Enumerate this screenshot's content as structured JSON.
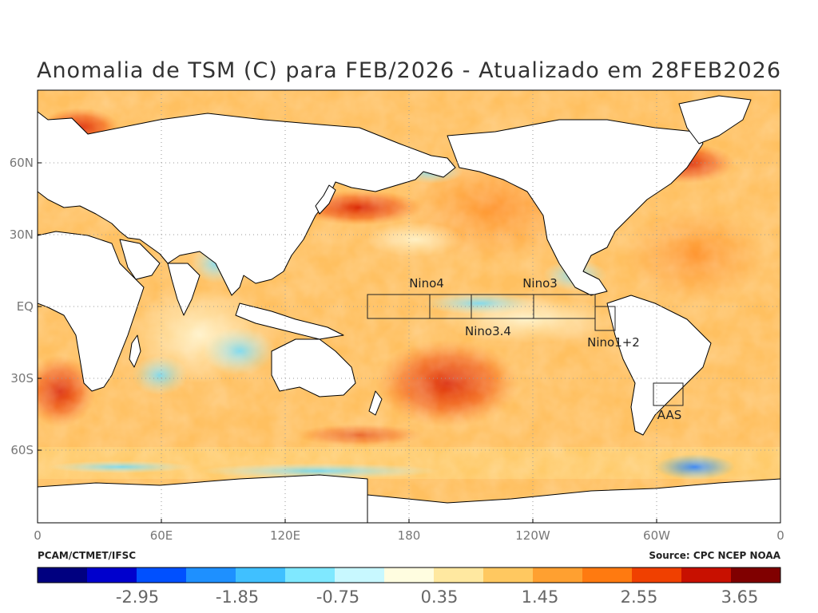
{
  "title": "Anomalia de TSM (C) para FEB/2026 - Atualizado em 28FEB2026",
  "credit_left": "PCAM/CTMET/IFSC",
  "credit_right": "Source: CPC NCEP NOAA",
  "map": {
    "lon_labels": [
      "0",
      "60E",
      "120E",
      "180",
      "120W",
      "60W",
      "0"
    ],
    "lat_labels": [
      "60N",
      "30N",
      "EQ",
      "30S",
      "60S"
    ],
    "regions": [
      {
        "name": "Nino4",
        "label": "Nino4"
      },
      {
        "name": "Nino3.4",
        "label": "Nino3.4"
      },
      {
        "name": "Nino3",
        "label": "Nino3"
      },
      {
        "name": "Nino1+2",
        "label": "Nino1+2"
      },
      {
        "name": "AAS",
        "label": "AAS"
      }
    ]
  },
  "colorbar": {
    "tick_labels": [
      "-2.95",
      "-1.85",
      "-0.75",
      "0.35",
      "1.45",
      "2.55",
      "3.65"
    ],
    "colors": [
      "#000080",
      "#0000cd",
      "#0050ff",
      "#1e90ff",
      "#40c0ff",
      "#7fe8ff",
      "#c8f8ff",
      "#fffde0",
      "#ffe8a0",
      "#ffc860",
      "#ffa030",
      "#ff7a10",
      "#f04000",
      "#c81000",
      "#800000"
    ]
  }
}
